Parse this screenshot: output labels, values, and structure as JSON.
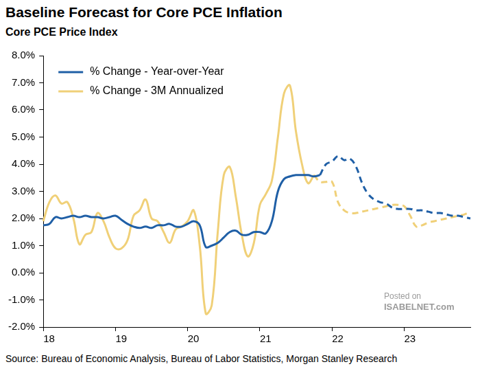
{
  "chart_data": {
    "type": "line",
    "title": "Baseline Forecast for Core PCE Inflation",
    "subtitle": "Core PCE Price Index",
    "source": "Source: Bureau of Economic Analysis, Bureau of Labor Statistics, Morgan Stanley Research",
    "annotations": [
      "Posted on",
      "ISABELNET.com"
    ],
    "categories": [
      "18",
      null,
      null,
      null,
      null,
      null,
      null,
      null,
      null,
      null,
      null,
      null,
      "19",
      null,
      null,
      null,
      null,
      null,
      null,
      null,
      null,
      null,
      null,
      null,
      "20",
      null,
      null,
      null,
      null,
      null,
      null,
      null,
      null,
      null,
      null,
      null,
      "21",
      null,
      null,
      null,
      null,
      null,
      null,
      null,
      null,
      null,
      null,
      null,
      "22",
      null,
      null,
      null,
      null,
      null,
      null,
      null,
      null,
      null,
      null,
      null,
      "23",
      null,
      null,
      null,
      null,
      null,
      null,
      null,
      null,
      null,
      null,
      null
    ],
    "series": [
      {
        "name": "% Change - Year-over-Year",
        "color": "#1f5fa6",
        "line_style": "solid",
        "values": [
          1.75,
          1.8,
          2.05,
          2.0,
          2.05,
          2.1,
          2.05,
          2.1,
          2.05,
          2.05,
          2.0,
          2.05,
          2.1,
          1.95,
          1.8,
          1.7,
          1.65,
          1.7,
          1.65,
          1.75,
          1.75,
          1.8,
          1.7,
          1.7,
          1.8,
          1.9,
          1.75,
          0.95,
          1.0,
          1.1,
          1.3,
          1.5,
          1.55,
          1.4,
          1.4,
          1.5,
          1.5,
          1.45,
          1.9,
          3.0,
          3.45,
          3.55,
          3.6,
          3.6,
          3.6,
          3.55,
          3.6,
          null,
          null,
          null,
          null,
          null,
          null,
          null,
          null,
          null,
          null,
          null,
          null,
          null,
          null,
          null,
          null,
          null,
          null,
          null,
          null,
          null,
          null,
          null,
          null,
          null
        ]
      },
      {
        "name": "% Change - 3M Annualized",
        "color": "#f0d078",
        "line_style": "solid",
        "values": [
          1.9,
          2.6,
          2.85,
          2.55,
          2.6,
          2.0,
          1.05,
          1.4,
          1.5,
          2.2,
          1.9,
          1.3,
          0.9,
          0.9,
          1.2,
          2.1,
          2.3,
          2.7,
          2.0,
          1.9,
          1.5,
          1.1,
          1.6,
          1.7,
          1.9,
          2.3,
          1.0,
          -1.5,
          -1.2,
          1.5,
          3.6,
          3.9,
          2.8,
          1.4,
          0.6,
          1.1,
          2.5,
          2.9,
          3.4,
          5.0,
          6.6,
          6.9,
          5.2,
          4.0,
          3.3,
          3.6,
          null,
          null,
          null,
          null,
          null,
          null,
          null,
          null,
          null,
          null,
          null,
          null,
          null,
          null,
          null,
          null,
          null,
          null,
          null,
          null,
          null,
          null,
          null,
          null,
          null,
          null
        ]
      },
      {
        "color": "#1f5fa6",
        "line_style": "dashed",
        "values": [
          null,
          null,
          null,
          null,
          null,
          null,
          null,
          null,
          null,
          null,
          null,
          null,
          null,
          null,
          null,
          null,
          null,
          null,
          null,
          null,
          null,
          null,
          null,
          null,
          null,
          null,
          null,
          null,
          null,
          null,
          null,
          null,
          null,
          null,
          null,
          null,
          null,
          null,
          null,
          null,
          null,
          null,
          null,
          null,
          null,
          null,
          3.6,
          4.0,
          4.1,
          4.3,
          4.15,
          4.2,
          3.9,
          3.3,
          2.9,
          2.7,
          2.6,
          2.55,
          2.4,
          2.35,
          2.35,
          2.35,
          2.3,
          2.3,
          2.25,
          2.2,
          2.2,
          2.15,
          2.1,
          2.1,
          2.05,
          2.0
        ]
      },
      {
        "color": "#f0d078",
        "line_style": "dashed",
        "values": [
          null,
          null,
          null,
          null,
          null,
          null,
          null,
          null,
          null,
          null,
          null,
          null,
          null,
          null,
          null,
          null,
          null,
          null,
          null,
          null,
          null,
          null,
          null,
          null,
          null,
          null,
          null,
          null,
          null,
          null,
          null,
          null,
          null,
          null,
          null,
          null,
          null,
          null,
          null,
          null,
          null,
          null,
          null,
          null,
          null,
          3.6,
          3.35,
          3.35,
          3.35,
          2.6,
          2.3,
          2.2,
          2.2,
          2.25,
          2.3,
          2.35,
          2.4,
          2.45,
          2.5,
          2.5,
          2.45,
          2.1,
          1.7,
          1.75,
          1.85,
          1.9,
          1.95,
          2.0,
          2.05,
          2.1,
          2.15,
          2.25
        ]
      }
    ],
    "ylim": [
      -2,
      8
    ],
    "yticks": [
      {
        "value": -2,
        "label": "-2.0%"
      },
      {
        "value": -1,
        "label": "-1.0%"
      },
      {
        "value": 0,
        "label": "0.0%"
      },
      {
        "value": 1,
        "label": "1.0%"
      },
      {
        "value": 2,
        "label": "2.0%"
      },
      {
        "value": 3,
        "label": "3.0%"
      },
      {
        "value": 4,
        "label": "4.0%"
      },
      {
        "value": 5,
        "label": "5.0%"
      },
      {
        "value": 6,
        "label": "6.0%"
      },
      {
        "value": 7,
        "label": "7.0%"
      },
      {
        "value": 8,
        "label": "8.0%"
      }
    ],
    "grid": false,
    "legend": "upper left"
  }
}
